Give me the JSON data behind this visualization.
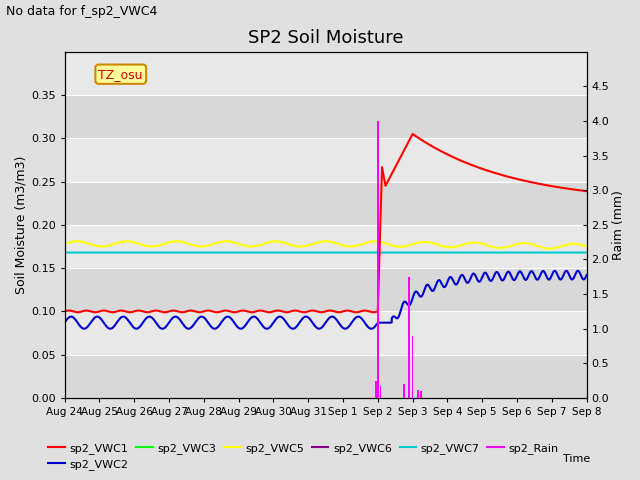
{
  "title": "SP2 Soil Moisture",
  "subtitle": "No data for f_sp2_VWC4",
  "ylabel_left": "Soil Moisture (m3/m3)",
  "ylabel_right": "Raim (mm)",
  "ylim_left": [
    0,
    0.4
  ],
  "ylim_right": [
    0,
    5.0
  ],
  "yticks_left": [
    0.0,
    0.05,
    0.1,
    0.15,
    0.2,
    0.25,
    0.3,
    0.35
  ],
  "yticks_right": [
    0.0,
    0.5,
    1.0,
    1.5,
    2.0,
    2.5,
    3.0,
    3.5,
    4.0,
    4.5
  ],
  "fig_bg": "#e0e0e0",
  "plot_bg": "#e8e8e8",
  "tz_label": "TZ_osu",
  "vwc1_color": "#ff0000",
  "vwc2_color": "#0000cc",
  "vwc3_color": "#00ff00",
  "vwc5_color": "#ffff00",
  "vwc6_color": "#880088",
  "vwc7_color": "#00cccc",
  "rain_color": "#ff00ff",
  "xtick_labels": [
    "Aug 24",
    "Aug 25",
    "Aug 26",
    "Aug 27",
    "Aug 28",
    "Aug 29",
    "Aug 30",
    "Aug 31",
    "Sep 1",
    "Sep 2",
    "Sep 3",
    "Sep 4",
    "Sep 5",
    "Sep 6",
    "Sep 7",
    "Sep 8"
  ],
  "sep2_day": 9.0,
  "sep3_day": 10.0,
  "total_days": 15.0
}
